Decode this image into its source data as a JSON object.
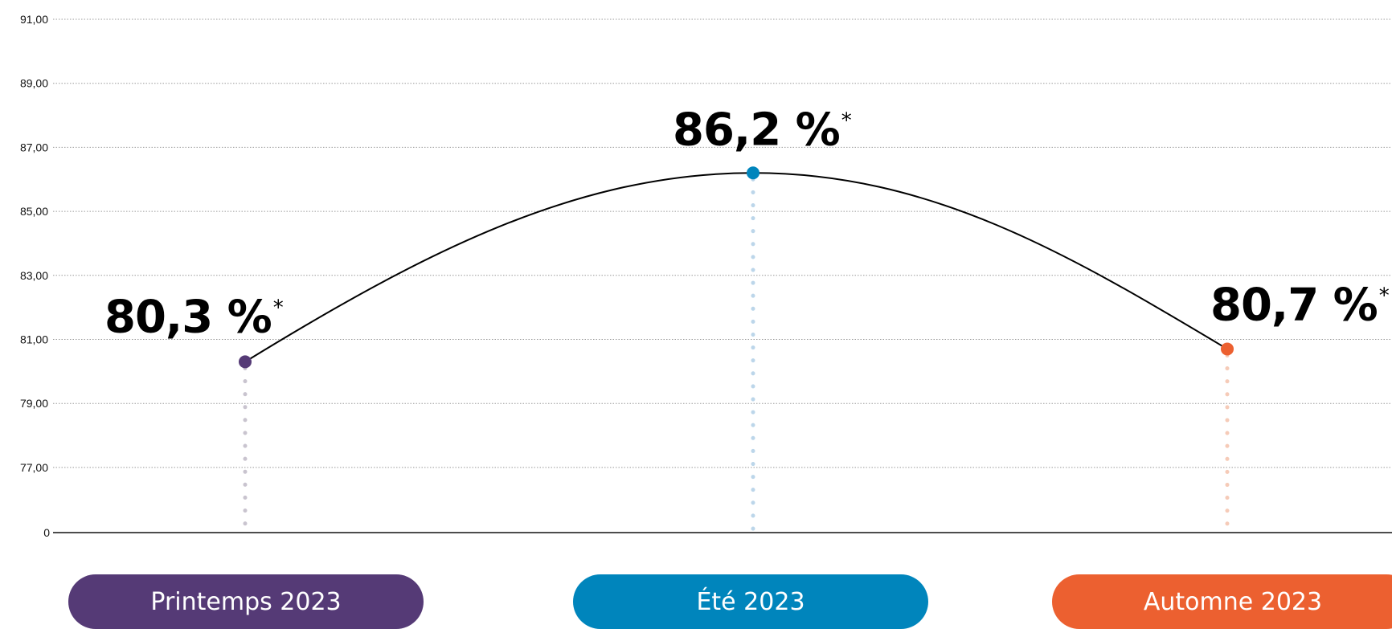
{
  "chart_data": {
    "type": "line",
    "y_ticks": [
      "91,00",
      "89,00",
      "87,00",
      "85,00",
      "83,00",
      "81,00",
      "79,00",
      "77,00",
      "0"
    ],
    "y_tick_values": [
      91,
      89,
      87,
      85,
      83,
      81,
      79,
      77,
      0
    ],
    "grid": true,
    "curve": "smooth",
    "points": [
      {
        "category": "Printemps 2023",
        "value": 80.3,
        "label": "80,3 %",
        "note": "*",
        "color": "#553a76"
      },
      {
        "category": "Été 2023",
        "value": 86.2,
        "label": "86,2 %",
        "note": "*",
        "color": "#0085bc"
      },
      {
        "category": "Automne 2023",
        "value": 80.7,
        "label": "80,7 %",
        "note": "*",
        "color": "#ec6030"
      }
    ],
    "connector_colors": [
      "#c9c4cf",
      "#bcd6ea",
      "#f6cbb8"
    ],
    "line_color": "#000000",
    "grid_color": "#9a9a9a"
  }
}
